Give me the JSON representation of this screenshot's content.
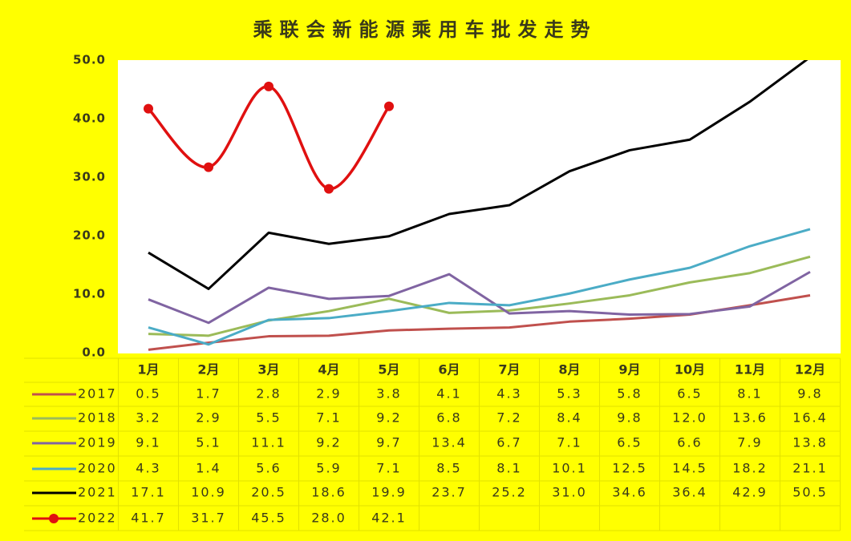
{
  "chart_data": {
    "type": "line",
    "title": "乘联会新能源乘用车批发走势",
    "categories": [
      "1月",
      "2月",
      "3月",
      "4月",
      "5月",
      "6月",
      "7月",
      "8月",
      "9月",
      "10月",
      "11月",
      "12月"
    ],
    "ylim": [
      0,
      50
    ],
    "yticks": [
      {
        "value": 0,
        "label": "0.0"
      },
      {
        "value": 10,
        "label": "10.0"
      },
      {
        "value": 20,
        "label": "20.0"
      },
      {
        "value": 30,
        "label": "30.0"
      },
      {
        "value": 40,
        "label": "40.0"
      },
      {
        "value": 50,
        "label": "50.0"
      }
    ],
    "grid": false,
    "series": [
      {
        "name": "2017",
        "color": "#c0504d",
        "values": [
          0.5,
          1.7,
          2.8,
          2.9,
          3.8,
          4.1,
          4.3,
          5.3,
          5.8,
          6.5,
          8.1,
          9.8
        ],
        "value_labels": [
          "0.5",
          "1.7",
          "2.8",
          "2.9",
          "3.8",
          "4.1",
          "4.3",
          "5.3",
          "5.8",
          "6.5",
          "8.1",
          "9.8"
        ]
      },
      {
        "name": "2018",
        "color": "#9bbb59",
        "values": [
          3.2,
          2.9,
          5.5,
          7.1,
          9.2,
          6.8,
          7.2,
          8.4,
          9.8,
          12.0,
          13.6,
          16.4
        ],
        "value_labels": [
          "3.2",
          "2.9",
          "5.5",
          "7.1",
          "9.2",
          "6.8",
          "7.2",
          "8.4",
          "9.8",
          "12.0",
          "13.6",
          "16.4"
        ]
      },
      {
        "name": "2019",
        "color": "#8064a2",
        "values": [
          9.1,
          5.1,
          11.1,
          9.2,
          9.7,
          13.4,
          6.7,
          7.1,
          6.5,
          6.6,
          7.9,
          13.8
        ],
        "value_labels": [
          "9.1",
          "5.1",
          "11.1",
          "9.2",
          "9.7",
          "13.4",
          "6.7",
          "7.1",
          "6.5",
          "6.6",
          "7.9",
          "13.8"
        ]
      },
      {
        "name": "2020",
        "color": "#4bacc6",
        "values": [
          4.3,
          1.4,
          5.6,
          5.9,
          7.1,
          8.5,
          8.1,
          10.1,
          12.5,
          14.5,
          18.2,
          21.1
        ],
        "value_labels": [
          "4.3",
          "1.4",
          "5.6",
          "5.9",
          "7.1",
          "8.5",
          "8.1",
          "10.1",
          "12.5",
          "14.5",
          "18.2",
          "21.1"
        ]
      },
      {
        "name": "2021",
        "color": "#000000",
        "values": [
          17.1,
          10.9,
          20.5,
          18.6,
          19.9,
          23.7,
          25.2,
          31.0,
          34.6,
          36.4,
          42.9,
          50.5
        ],
        "value_labels": [
          "17.1",
          "10.9",
          "20.5",
          "18.6",
          "19.9",
          "23.7",
          "25.2",
          "31.0",
          "34.6",
          "36.4",
          "42.9",
          "50.5"
        ]
      },
      {
        "name": "2022",
        "color": "#e01010",
        "marker": true,
        "smooth": true,
        "values": [
          41.7,
          31.7,
          45.5,
          28.0,
          42.1,
          null,
          null,
          null,
          null,
          null,
          null,
          null
        ],
        "value_labels": [
          "41.7",
          "31.7",
          "45.5",
          "28.0",
          "42.1",
          null,
          null,
          null,
          null,
          null,
          null,
          null
        ]
      }
    ]
  }
}
